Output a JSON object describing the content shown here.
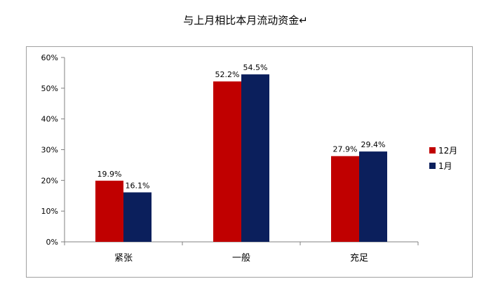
{
  "chart_data": {
    "type": "bar",
    "title": "与上月相比本月流动资金↵",
    "categories": [
      "紧张",
      "一般",
      "充足"
    ],
    "series": [
      {
        "name": "12月",
        "values": [
          19.9,
          52.2,
          27.9
        ],
        "labels": [
          "19.9%",
          "52.2%",
          "27.9%"
        ],
        "color": "#c00000"
      },
      {
        "name": "1月",
        "values": [
          16.1,
          54.5,
          29.4
        ],
        "labels": [
          "16.1%",
          "54.5%",
          "29.4%"
        ],
        "color": "#0b1f5c"
      }
    ],
    "y_ticks": [
      "0%",
      "10%",
      "20%",
      "30%",
      "40%",
      "50%",
      "60%"
    ],
    "ylim": [
      0,
      60
    ],
    "legend_position": "right",
    "grid": false
  }
}
